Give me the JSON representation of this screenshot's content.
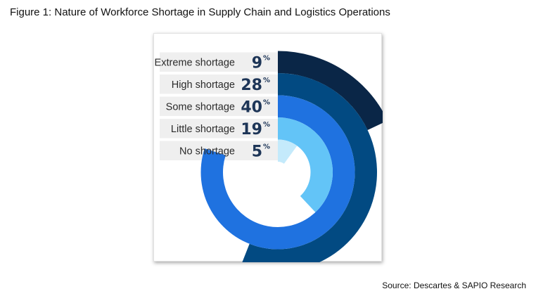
{
  "figure": {
    "title": "Figure 1: Nature of Workforce Shortage in Supply Chain and Logistics Operations",
    "source": "Source: Descartes & SAPIO Research"
  },
  "chart_data": {
    "type": "radial_bar",
    "title": "Figure 1: Nature of Workforce Shortage in Supply Chain and Logistics Operations",
    "categories": [
      "Extreme shortage",
      "High shortage",
      "Some shortage",
      "Little shortage",
      "No shortage"
    ],
    "values": [
      9,
      28,
      40,
      19,
      5
    ],
    "value_suffix": "%",
    "max_value": 50,
    "colors": [
      "#0a2647",
      "#024a82",
      "#1f72e0",
      "#63c4f7",
      "#c4eafb"
    ],
    "label_color": "#1d3557",
    "row_shading": "#efefef",
    "grid": false,
    "legend": "none",
    "source": "Source: Descartes & SAPIO Research"
  }
}
